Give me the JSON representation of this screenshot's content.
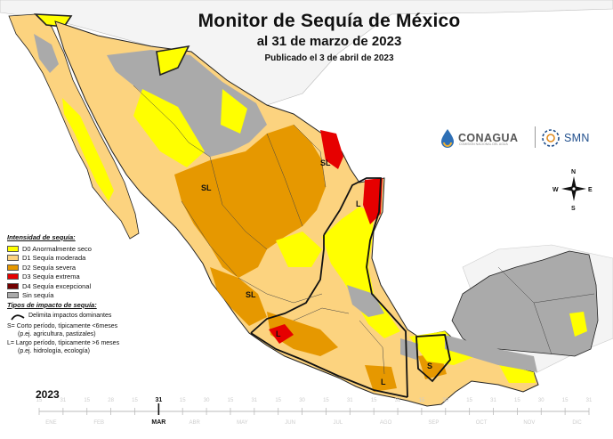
{
  "header": {
    "title": "Monitor de Sequía de México",
    "subtitle": "al 31 de marzo de 2023",
    "published": "Publicado el 3 de abril de 2023"
  },
  "logos": {
    "conagua": "CONAGUA",
    "conagua_sub": "COMISIÓN NACIONAL DEL AGUA",
    "smn": "SMN"
  },
  "compass": {
    "n": "N",
    "s": "S",
    "e": "E",
    "w": "W"
  },
  "legend": {
    "heading": "Intensidad de sequía:",
    "items": [
      {
        "label": "D0 Anormalmente seco",
        "color": "#ffff00"
      },
      {
        "label": "D1 Sequía moderada",
        "color": "#fcd37f"
      },
      {
        "label": "D2 Sequía severa",
        "color": "#e69800"
      },
      {
        "label": "D3 Sequía extrema",
        "color": "#e60000"
      },
      {
        "label": "D4 Sequía excepcional",
        "color": "#730000"
      },
      {
        "label": "Sin sequía",
        "color": "#aaaaaa"
      }
    ]
  },
  "impact": {
    "heading": "Tipos de impacto de sequía:",
    "line_label": "Delimita impactos dominantes",
    "short_1": "S= Corto período, típicamente <6meses",
    "short_2": "(p.ej. agricultura, pastizales)",
    "long_1": "L= Largo período, típicamente >6 meses",
    "long_2": "(p.ej. hidrología, ecología)"
  },
  "map_labels": {
    "sl_1": "SL",
    "sl_2": "SL",
    "sl_3": "SL",
    "l_1": "L",
    "l_2": "L",
    "l_3": "L",
    "s_1": "S"
  },
  "timeline": {
    "year": "2023",
    "current_day": "31",
    "current_month": "MAR",
    "months": [
      "ENE",
      "FEB",
      "MAR",
      "ABR",
      "MAY",
      "JUN",
      "JUL",
      "AGO",
      "SEP",
      "OCT",
      "NOV",
      "DIC"
    ],
    "days": [
      "15",
      "31",
      "15",
      "28",
      "15",
      "31",
      "15",
      "30",
      "15",
      "31",
      "15",
      "30",
      "15",
      "31",
      "15",
      "31",
      "15",
      "30",
      "15",
      "31",
      "15",
      "30",
      "15",
      "31"
    ],
    "current_index": 5
  }
}
